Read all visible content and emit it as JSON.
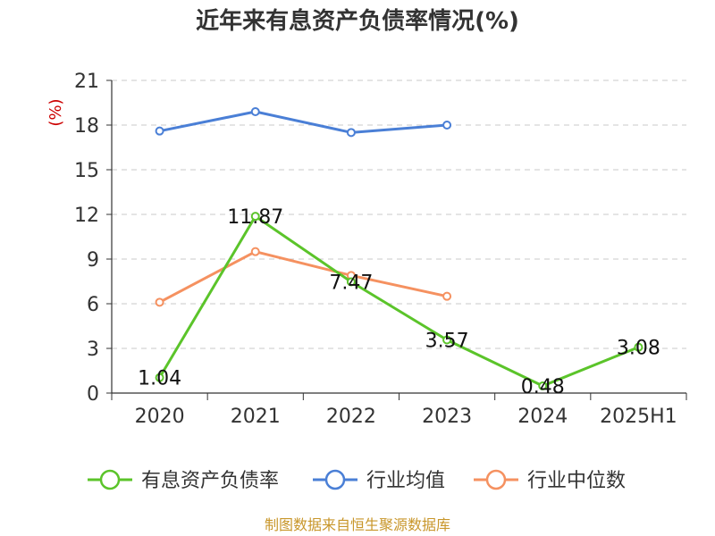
{
  "chart_data": {
    "type": "line",
    "title": "近年来有息资产负债率情况(%)",
    "ylabel": "(%)",
    "xlabel": "",
    "categories": [
      "2020",
      "2021",
      "2022",
      "2023",
      "2024",
      "2025H1"
    ],
    "ylim": [
      0,
      21
    ],
    "yticks": [
      "0",
      "3",
      "6",
      "9",
      "12",
      "15",
      "18",
      "21"
    ],
    "grid": true,
    "legend_position": "bottom",
    "series": [
      {
        "name": "有息资产负债率",
        "color": "#5bc42a",
        "values": [
          1.04,
          11.87,
          7.47,
          3.57,
          0.48,
          3.08
        ],
        "labels": [
          "1.04",
          "11.87",
          "7.47",
          "3.57",
          "0.48",
          "3.08"
        ]
      },
      {
        "name": "行业均值",
        "color": "#4a7fd6",
        "values": [
          17.6,
          18.9,
          17.5,
          18.0,
          null,
          null
        ]
      },
      {
        "name": "行业中位数",
        "color": "#f59160",
        "values": [
          6.1,
          9.5,
          7.9,
          6.5,
          null,
          null
        ]
      }
    ],
    "source": "制图数据来自恒生聚源数据库"
  }
}
